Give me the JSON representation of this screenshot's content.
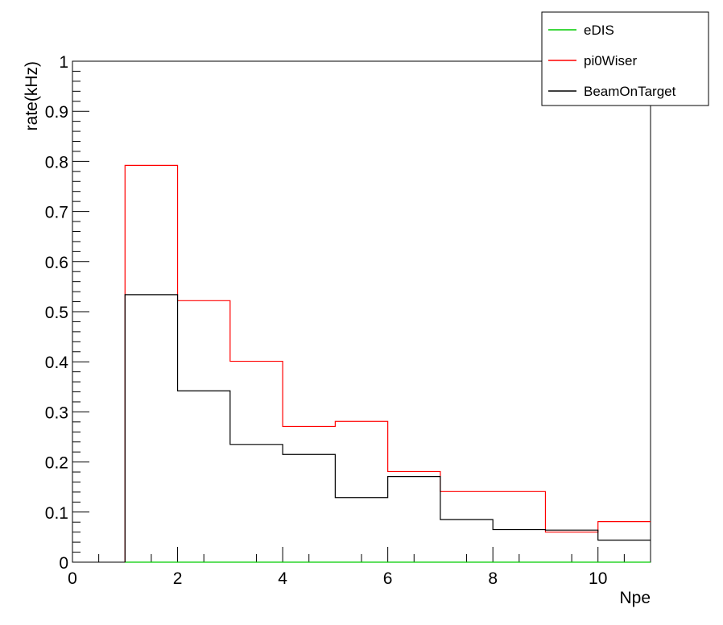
{
  "chart_data": {
    "type": "line",
    "style": "step-histogram",
    "title": "",
    "xlabel": "Npe",
    "ylabel": "rate(kHz)",
    "xlim": [
      0,
      11
    ],
    "ylim": [
      0,
      1
    ],
    "x_ticks": [
      "0",
      "2",
      "4",
      "6",
      "8",
      "10"
    ],
    "y_ticks": [
      "0",
      "0.1",
      "0.2",
      "0.3",
      "0.4",
      "0.5",
      "0.6",
      "0.7",
      "0.8",
      "0.9",
      "1"
    ],
    "bin_edges": [
      1,
      2,
      3,
      4,
      5,
      6,
      7,
      8,
      9,
      10,
      11
    ],
    "grid": false,
    "legend_position": "top-right",
    "series": [
      {
        "name": "eDIS",
        "color": "#00cc00",
        "values": [
          0,
          0,
          0,
          0,
          0,
          0,
          0,
          0,
          0,
          0
        ]
      },
      {
        "name": "pi0Wiser",
        "color": "#ff0000",
        "values": [
          0.792,
          0.522,
          0.401,
          0.271,
          0.281,
          0.181,
          0.141,
          0.141,
          0.06,
          0.081
        ]
      },
      {
        "name": "BeamOnTarget",
        "color": "#000000",
        "values": [
          0.534,
          0.342,
          0.235,
          0.215,
          0.129,
          0.171,
          0.085,
          0.065,
          0.064,
          0.044
        ]
      }
    ]
  }
}
